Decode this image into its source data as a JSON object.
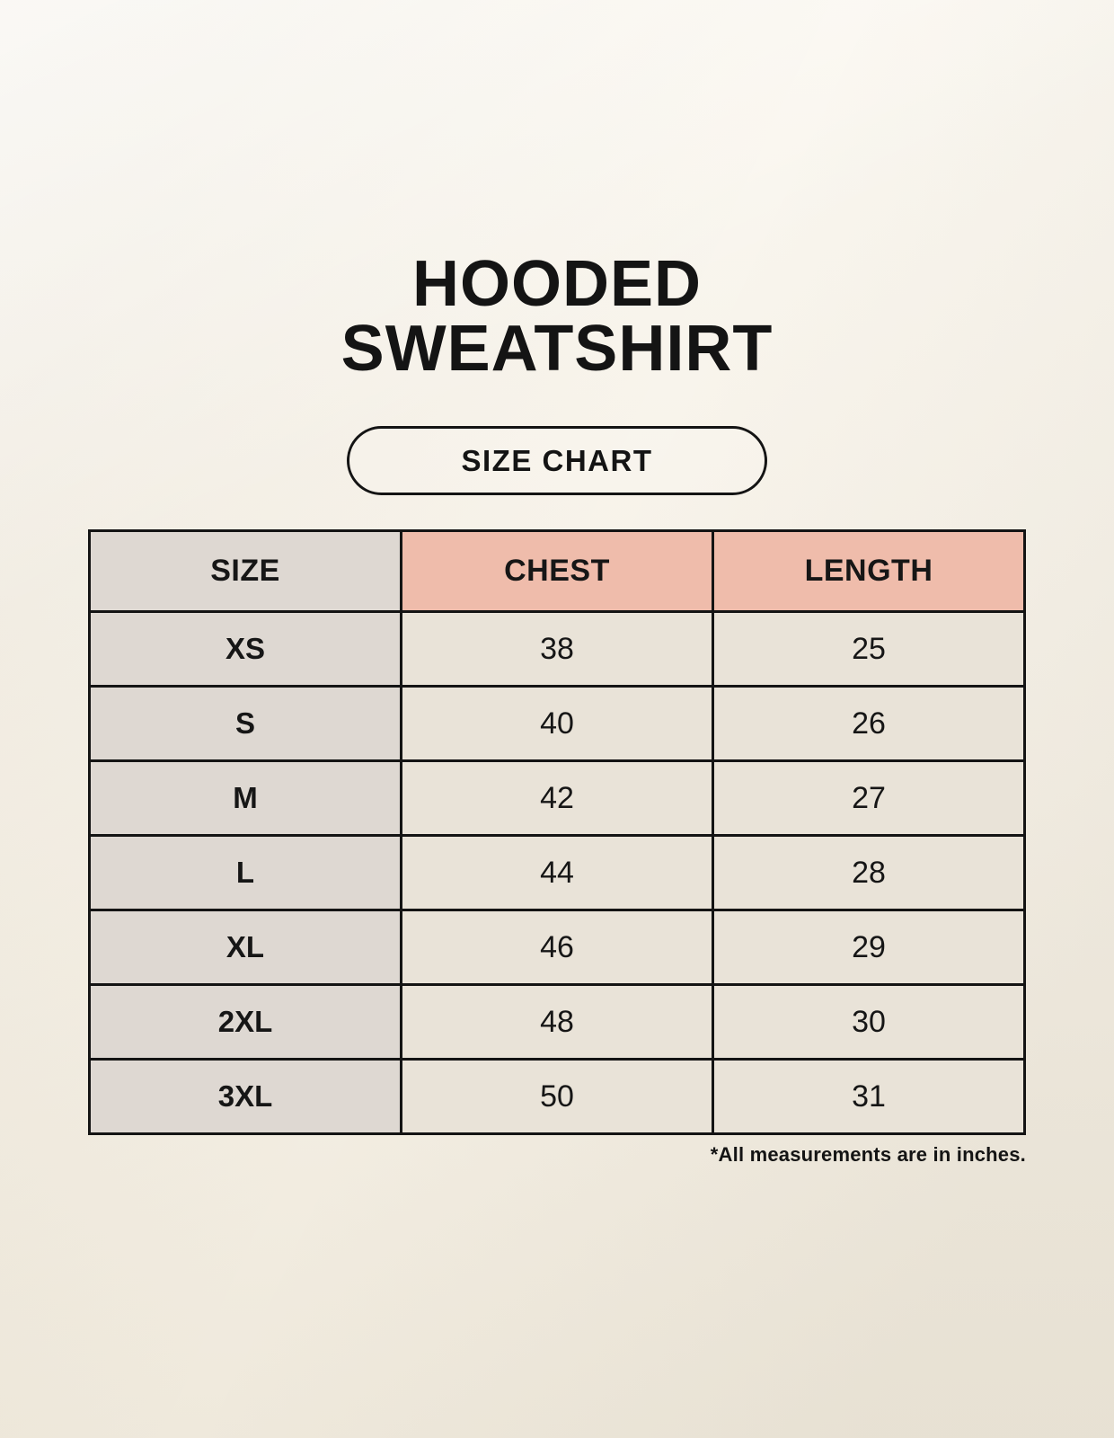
{
  "header": {
    "title_line1": "HOODED",
    "title_line2": "SWEATSHIRT",
    "badge_label": "SIZE CHART"
  },
  "chart_data": {
    "type": "table",
    "title": "HOODED SWEATSHIRT",
    "subtitle": "SIZE CHART",
    "columns": [
      "SIZE",
      "CHEST",
      "LENGTH"
    ],
    "rows": [
      [
        "XS",
        38,
        25
      ],
      [
        "S",
        40,
        26
      ],
      [
        "M",
        42,
        27
      ],
      [
        "L",
        44,
        28
      ],
      [
        "XL",
        46,
        29
      ],
      [
        "2XL",
        48,
        30
      ],
      [
        "3XL",
        50,
        31
      ]
    ],
    "note": "*All measurements are in inches.",
    "units": "inches"
  },
  "colors": {
    "page_background": "#f6f1e7",
    "header_accent": "#efbcab",
    "size_column_background": "#ded8d2",
    "value_cell_background": "#e9e3d8",
    "table_border": "#141414",
    "text": "#161616"
  }
}
